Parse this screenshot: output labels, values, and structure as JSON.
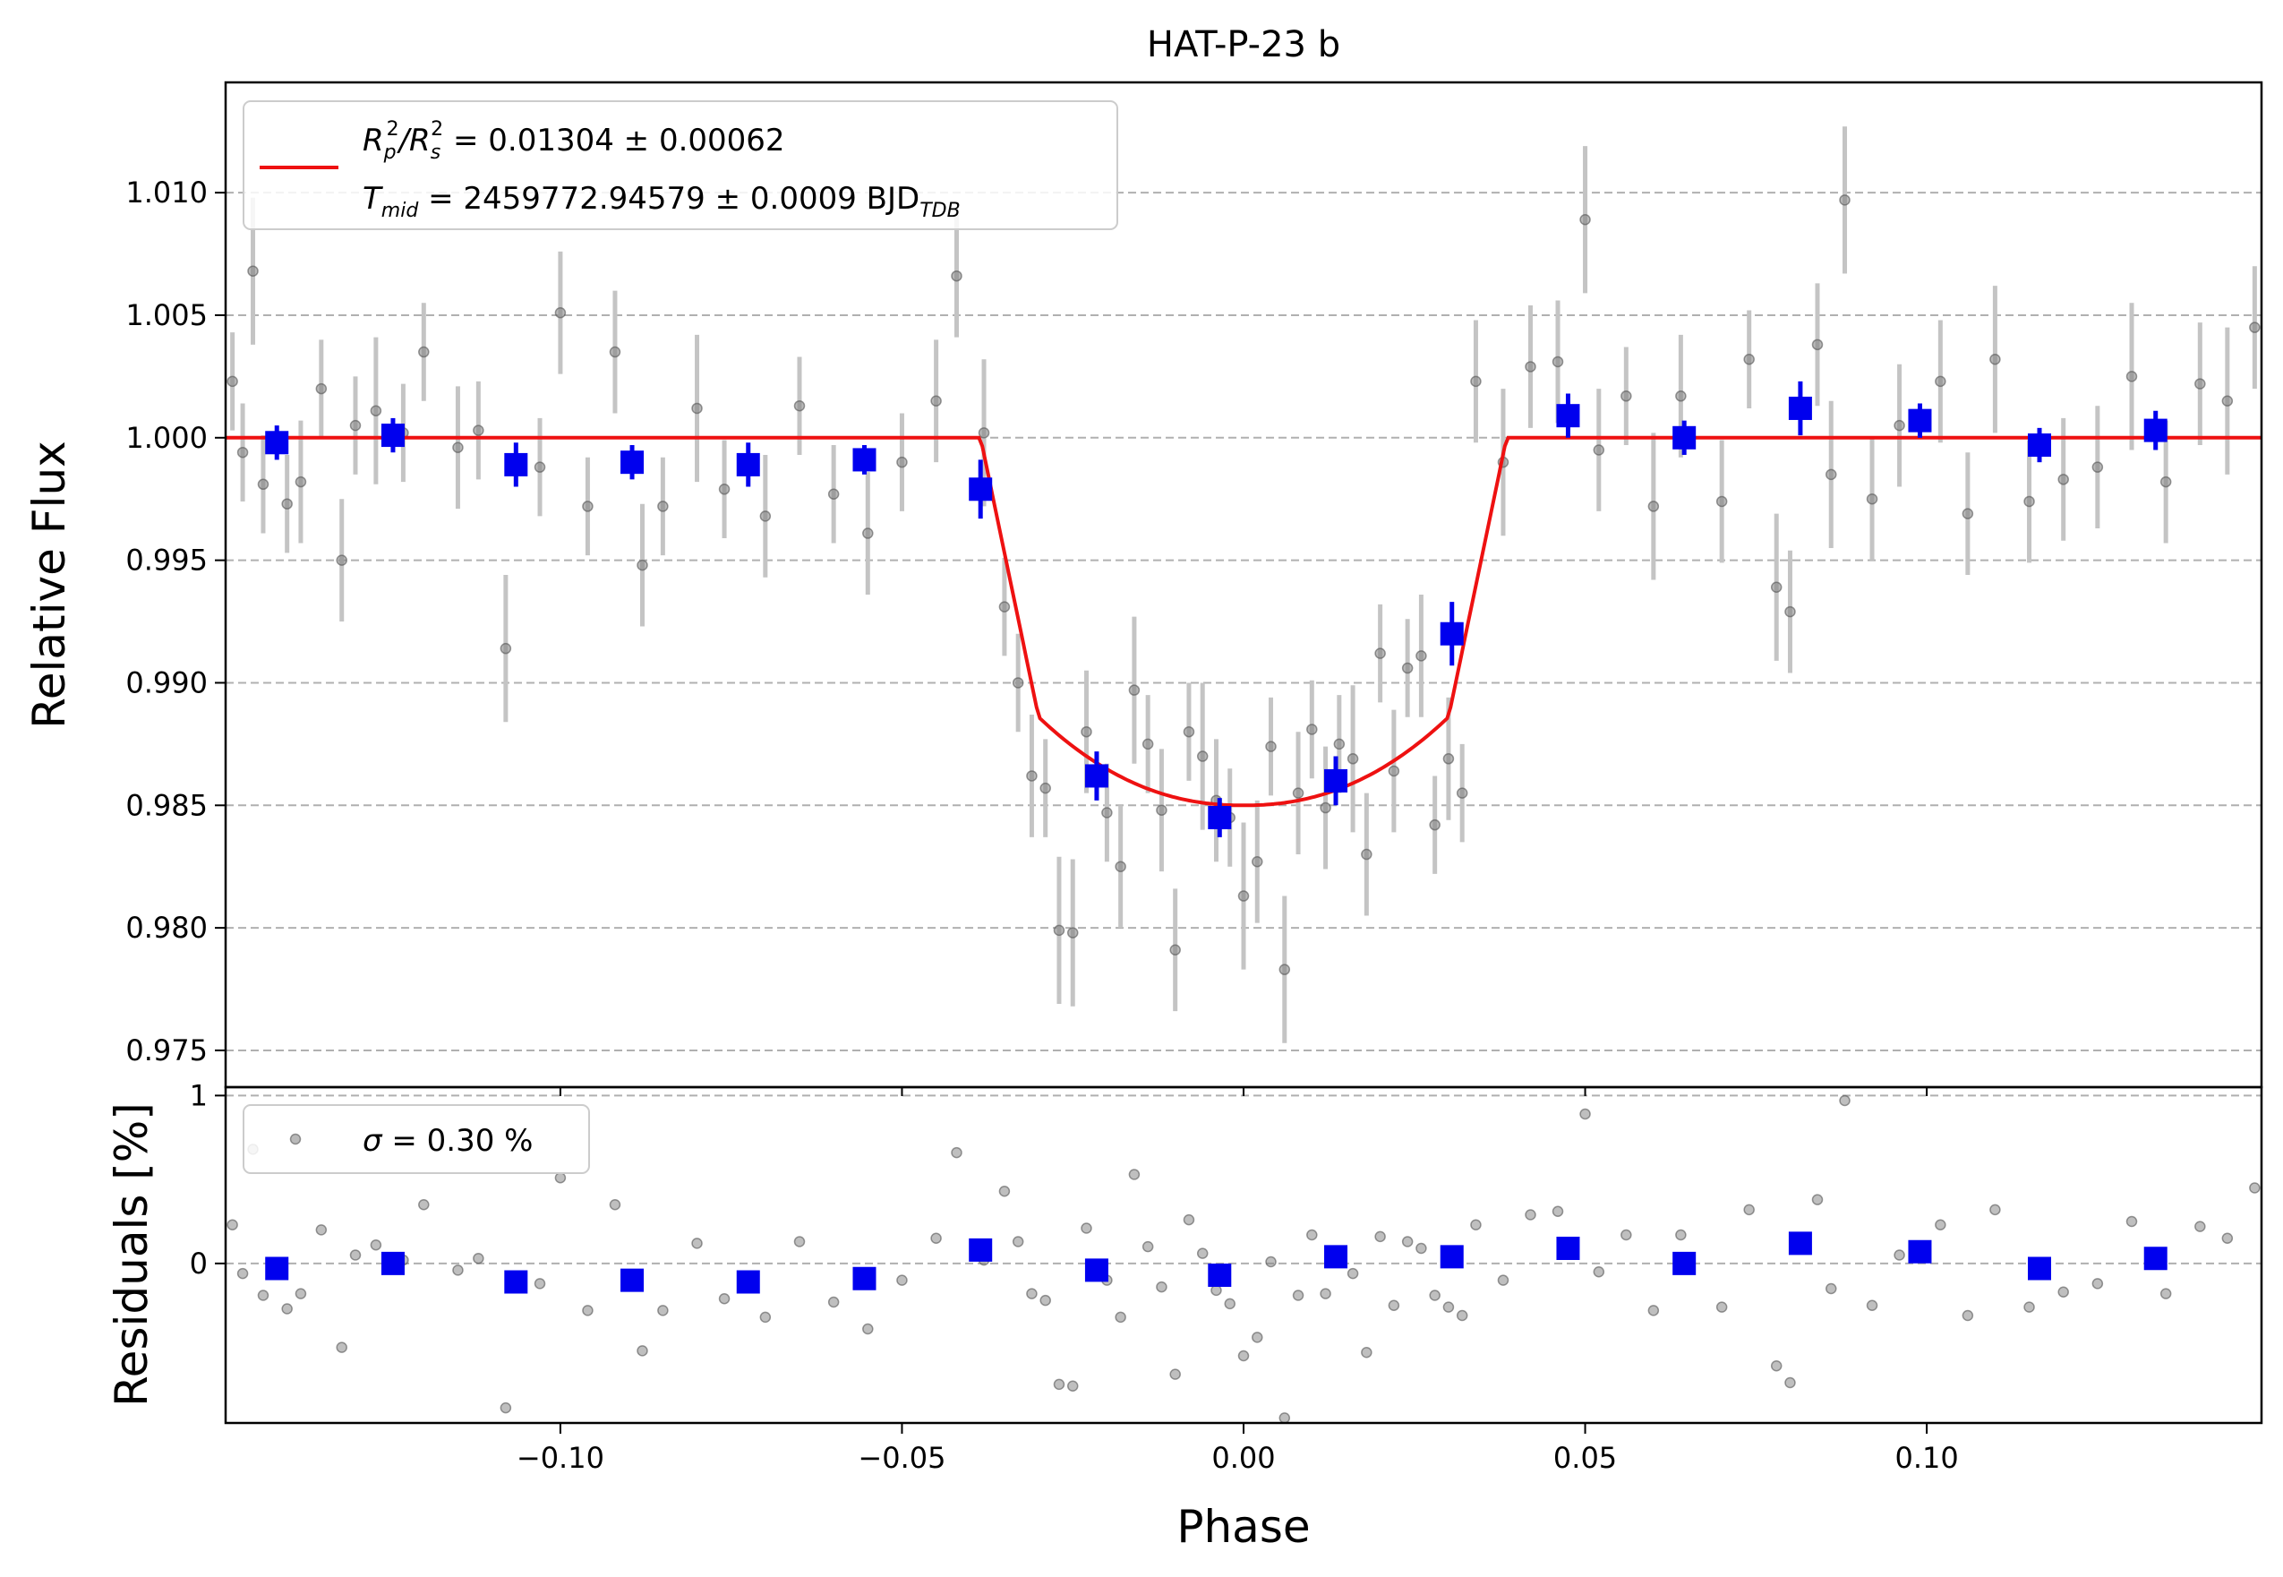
{
  "chart_data": {
    "type": "scatter",
    "title": "HAT-P-23 b",
    "xlabel": "Phase",
    "ylabel_top": "Relative Flux",
    "ylabel_bottom": "Residuals [%]",
    "xlim": [
      -0.149,
      0.149
    ],
    "ylim_top": [
      0.9735,
      1.0145
    ],
    "ylim_bottom": [
      -0.95,
      1.05
    ],
    "x_ticks": [
      -0.1,
      -0.05,
      0.0,
      0.05,
      0.1
    ],
    "x_tick_labels": [
      "−0.10",
      "−0.05",
      "0.00",
      "0.05",
      "0.10"
    ],
    "y_ticks_top": [
      0.975,
      0.98,
      0.985,
      0.99,
      0.995,
      1.0,
      1.005,
      1.01
    ],
    "y_tick_labels_top": [
      "0.975",
      "0.980",
      "0.985",
      "0.990",
      "0.995",
      "1.000",
      "1.005",
      "1.010"
    ],
    "y_ticks_bottom": [
      0,
      1
    ],
    "y_tick_labels_bottom": [
      "0",
      "1"
    ],
    "grid": "dashed horizontal",
    "legend_top": {
      "placement": "top-left",
      "line1_prefix": "R",
      "line1_sub1": "p",
      "line1_sup1": "2",
      "line1_slash": "/R",
      "line1_sub2": "s",
      "line1_sup2": "2",
      "line1_value": " = 0.01304 ± 0.00062",
      "line2_prefix": "T",
      "line2_sub": "mid",
      "line2_value": " = 2459772.94579 ± 0.0009 BJD",
      "line2_sub2": "TDB"
    },
    "legend_bottom": {
      "placement": "top-left",
      "sigma_symbol": "σ",
      "text": " = 0.30 %"
    },
    "model": {
      "name": "transit model",
      "depth_center": 0.985,
      "t1": -0.0385,
      "t2": -0.03,
      "t3": 0.03,
      "t4": 0.0385,
      "ingress_flux": 0.9886,
      "color": "#ee1111"
    },
    "binned": {
      "color": "#0000ee",
      "x": [
        -0.1415,
        -0.1245,
        -0.1065,
        -0.0895,
        -0.0725,
        -0.0555,
        -0.0385,
        -0.0215,
        -0.0035,
        0.0135,
        0.0305,
        0.0475,
        0.0645,
        0.0815,
        0.099,
        0.1165,
        0.1335
      ],
      "y": [
        0.9998,
        1.0001,
        0.9989,
        0.999,
        0.9989,
        0.9991,
        0.9979,
        0.9862,
        0.9845,
        0.986,
        0.992,
        1.0009,
        1.0,
        1.0012,
        1.0007,
        0.9997,
        1.0003
      ],
      "yerr": [
        0.0007,
        0.0007,
        0.0009,
        0.0007,
        0.0009,
        0.0006,
        0.0012,
        0.001,
        0.0008,
        0.001,
        0.0013,
        0.0009,
        0.0007,
        0.0011,
        0.0007,
        0.0007,
        0.0008
      ],
      "resid": [
        -0.03,
        0.0,
        -0.11,
        -0.1,
        -0.11,
        -0.09,
        0.08,
        -0.04,
        -0.07,
        0.04,
        0.04,
        0.09,
        0.0,
        0.12,
        0.07,
        -0.03,
        0.03
      ]
    },
    "raw": {
      "color": "#808080",
      "x": [
        -0.148,
        -0.1465,
        -0.145,
        -0.1435,
        -0.14,
        -0.138,
        -0.135,
        -0.132,
        -0.13,
        -0.127,
        -0.123,
        -0.12,
        -0.115,
        -0.112,
        -0.108,
        -0.103,
        -0.1,
        -0.096,
        -0.092,
        -0.088,
        -0.085,
        -0.08,
        -0.076,
        -0.07,
        -0.065,
        -0.06,
        -0.055,
        -0.05,
        -0.045,
        -0.042,
        -0.038,
        -0.035,
        -0.033,
        -0.031,
        -0.029,
        -0.027,
        -0.025,
        -0.023,
        -0.02,
        -0.018,
        -0.016,
        -0.014,
        -0.012,
        -0.01,
        -0.008,
        -0.006,
        -0.004,
        -0.002,
        0.0,
        0.002,
        0.004,
        0.006,
        0.008,
        0.01,
        0.012,
        0.014,
        0.016,
        0.018,
        0.02,
        0.022,
        0.024,
        0.026,
        0.028,
        0.03,
        0.032,
        0.034,
        0.038,
        0.042,
        0.046,
        0.05,
        0.052,
        0.056,
        0.06,
        0.064,
        0.07,
        0.074,
        0.078,
        0.08,
        0.084,
        0.086,
        0.088,
        0.092,
        0.096,
        0.102,
        0.106,
        0.11,
        0.115,
        0.12,
        0.125,
        0.13,
        0.135,
        0.14,
        0.144,
        0.148
      ],
      "y": [
        1.0023,
        0.9994,
        1.0068,
        0.9981,
        0.9973,
        0.9982,
        1.002,
        0.995,
        1.0005,
        1.0011,
        1.0002,
        1.0035,
        0.9996,
        1.0003,
        0.9914,
        0.9988,
        1.0051,
        0.9972,
        1.0035,
        0.9948,
        0.9972,
        1.0012,
        0.9979,
        0.9968,
        1.0013,
        0.9977,
        0.9961,
        0.999,
        1.0015,
        1.0066,
        1.0002,
        0.9931,
        0.99,
        0.9862,
        0.9857,
        0.9799,
        0.9798,
        0.988,
        0.9847,
        0.9825,
        0.9897,
        0.9875,
        0.9848,
        0.9791,
        0.988,
        0.987,
        0.9852,
        0.9845,
        0.9813,
        0.9827,
        0.9874,
        0.9783,
        0.9855,
        0.9881,
        0.9849,
        0.9875,
        0.9869,
        0.983,
        0.9912,
        0.9864,
        0.9906,
        0.9911,
        0.9842,
        0.9869,
        0.9855,
        1.0023,
        0.999,
        1.0029,
        1.0031,
        1.0089,
        0.9995,
        1.0017,
        0.9972,
        1.0017,
        0.9974,
        1.0032,
        0.9939,
        0.9929,
        1.0038,
        0.9985,
        1.0097,
        0.9975,
        1.0005,
        1.0023,
        0.9969,
        1.0032,
        0.9974,
        0.9983,
        0.9988,
        1.0025,
        0.9982,
        1.0022,
        1.0015,
        1.0045
      ],
      "yerr": [
        0.002,
        0.002,
        0.003,
        0.002,
        0.002,
        0.0025,
        0.002,
        0.0025,
        0.002,
        0.003,
        0.002,
        0.002,
        0.0025,
        0.002,
        0.003,
        0.002,
        0.0025,
        0.002,
        0.0025,
        0.0025,
        0.002,
        0.003,
        0.002,
        0.0025,
        0.002,
        0.002,
        0.0025,
        0.002,
        0.0025,
        0.0025,
        0.003,
        0.002,
        0.002,
        0.0025,
        0.002,
        0.003,
        0.003,
        0.0025,
        0.002,
        0.0025,
        0.003,
        0.002,
        0.0025,
        0.0025,
        0.002,
        0.003,
        0.0025,
        0.002,
        0.003,
        0.0025,
        0.002,
        0.003,
        0.0025,
        0.002,
        0.0025,
        0.002,
        0.003,
        0.0025,
        0.002,
        0.0025,
        0.002,
        0.0025,
        0.002,
        0.0025,
        0.002,
        0.0025,
        0.003,
        0.0025,
        0.0025,
        0.003,
        0.0025,
        0.002,
        0.003,
        0.0025,
        0.0025,
        0.002,
        0.003,
        0.0025,
        0.0025,
        0.003,
        0.003,
        0.0025,
        0.0025,
        0.0025,
        0.0025,
        0.003,
        0.0025,
        0.0025,
        0.0025,
        0.003,
        0.0025,
        0.0025,
        0.003,
        0.0025
      ],
      "resid": [
        0.23,
        -0.06,
        0.68,
        -0.19,
        -0.27,
        -0.18,
        0.2,
        -0.5,
        0.05,
        0.11,
        0.02,
        0.35,
        -0.04,
        0.03,
        -0.86,
        -0.12,
        0.51,
        -0.28,
        0.35,
        -0.52,
        -0.28,
        0.12,
        -0.21,
        -0.32,
        0.13,
        -0.23,
        -0.39,
        -0.1,
        0.15,
        0.66,
        0.02,
        0.43,
        0.13,
        -0.18,
        -0.22,
        -0.72,
        -0.73,
        0.21,
        -0.1,
        -0.32,
        0.53,
        0.1,
        -0.14,
        -0.66,
        0.26,
        0.06,
        -0.16,
        -0.24,
        -0.55,
        -0.44,
        0.01,
        -0.92,
        -0.19,
        0.17,
        -0.18,
        0.03,
        -0.06,
        -0.53,
        0.16,
        -0.25,
        0.13,
        0.09,
        -0.19,
        -0.26,
        -0.31,
        0.23,
        -0.1,
        0.29,
        0.31,
        0.89,
        -0.05,
        0.17,
        -0.28,
        0.17,
        -0.26,
        0.32,
        -0.61,
        -0.71,
        0.38,
        -0.15,
        0.97,
        -0.25,
        0.05,
        0.23,
        -0.31,
        0.32,
        -0.26,
        -0.17,
        -0.12,
        0.25,
        -0.18,
        0.22,
        0.15,
        0.45
      ]
    }
  }
}
